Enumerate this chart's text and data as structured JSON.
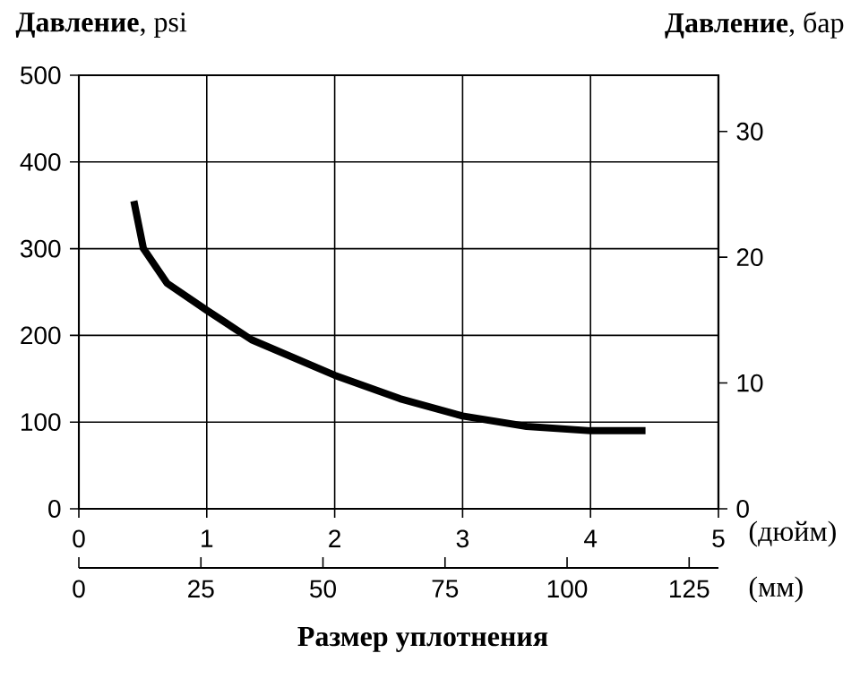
{
  "chart_data": {
    "type": "line",
    "ylabel": "**Давление**, psi",
    "y2label": "**Давление**, бар",
    "xlabel": "(дюйм)",
    "x2label": "(мм)",
    "annotations": [
      "**Размер уплотнения**"
    ],
    "xlim": [
      0,
      5
    ],
    "xticks": [
      0,
      1,
      2,
      3,
      4,
      5
    ],
    "x2lim": [
      0,
      131
    ],
    "x2ticks": [
      0,
      25,
      50,
      75,
      100,
      125
    ],
    "ylim": [
      0,
      500
    ],
    "yticks": [
      0,
      100,
      200,
      300,
      400,
      500
    ],
    "y2lim": [
      0,
      34.47
    ],
    "y2ticks": [
      0,
      10,
      20,
      30
    ],
    "grid": true,
    "line_style": "solid",
    "series": [
      {
        "color": "#000000",
        "x": [
          0.43,
          0.505,
          0.69,
          1.0,
          1.35,
          2.0,
          2.51,
          3.0,
          3.5,
          4.0,
          4.43
        ],
        "values": [
          355,
          300,
          260,
          229,
          195,
          154,
          127,
          107,
          95,
          90,
          90
        ]
      }
    ]
  }
}
